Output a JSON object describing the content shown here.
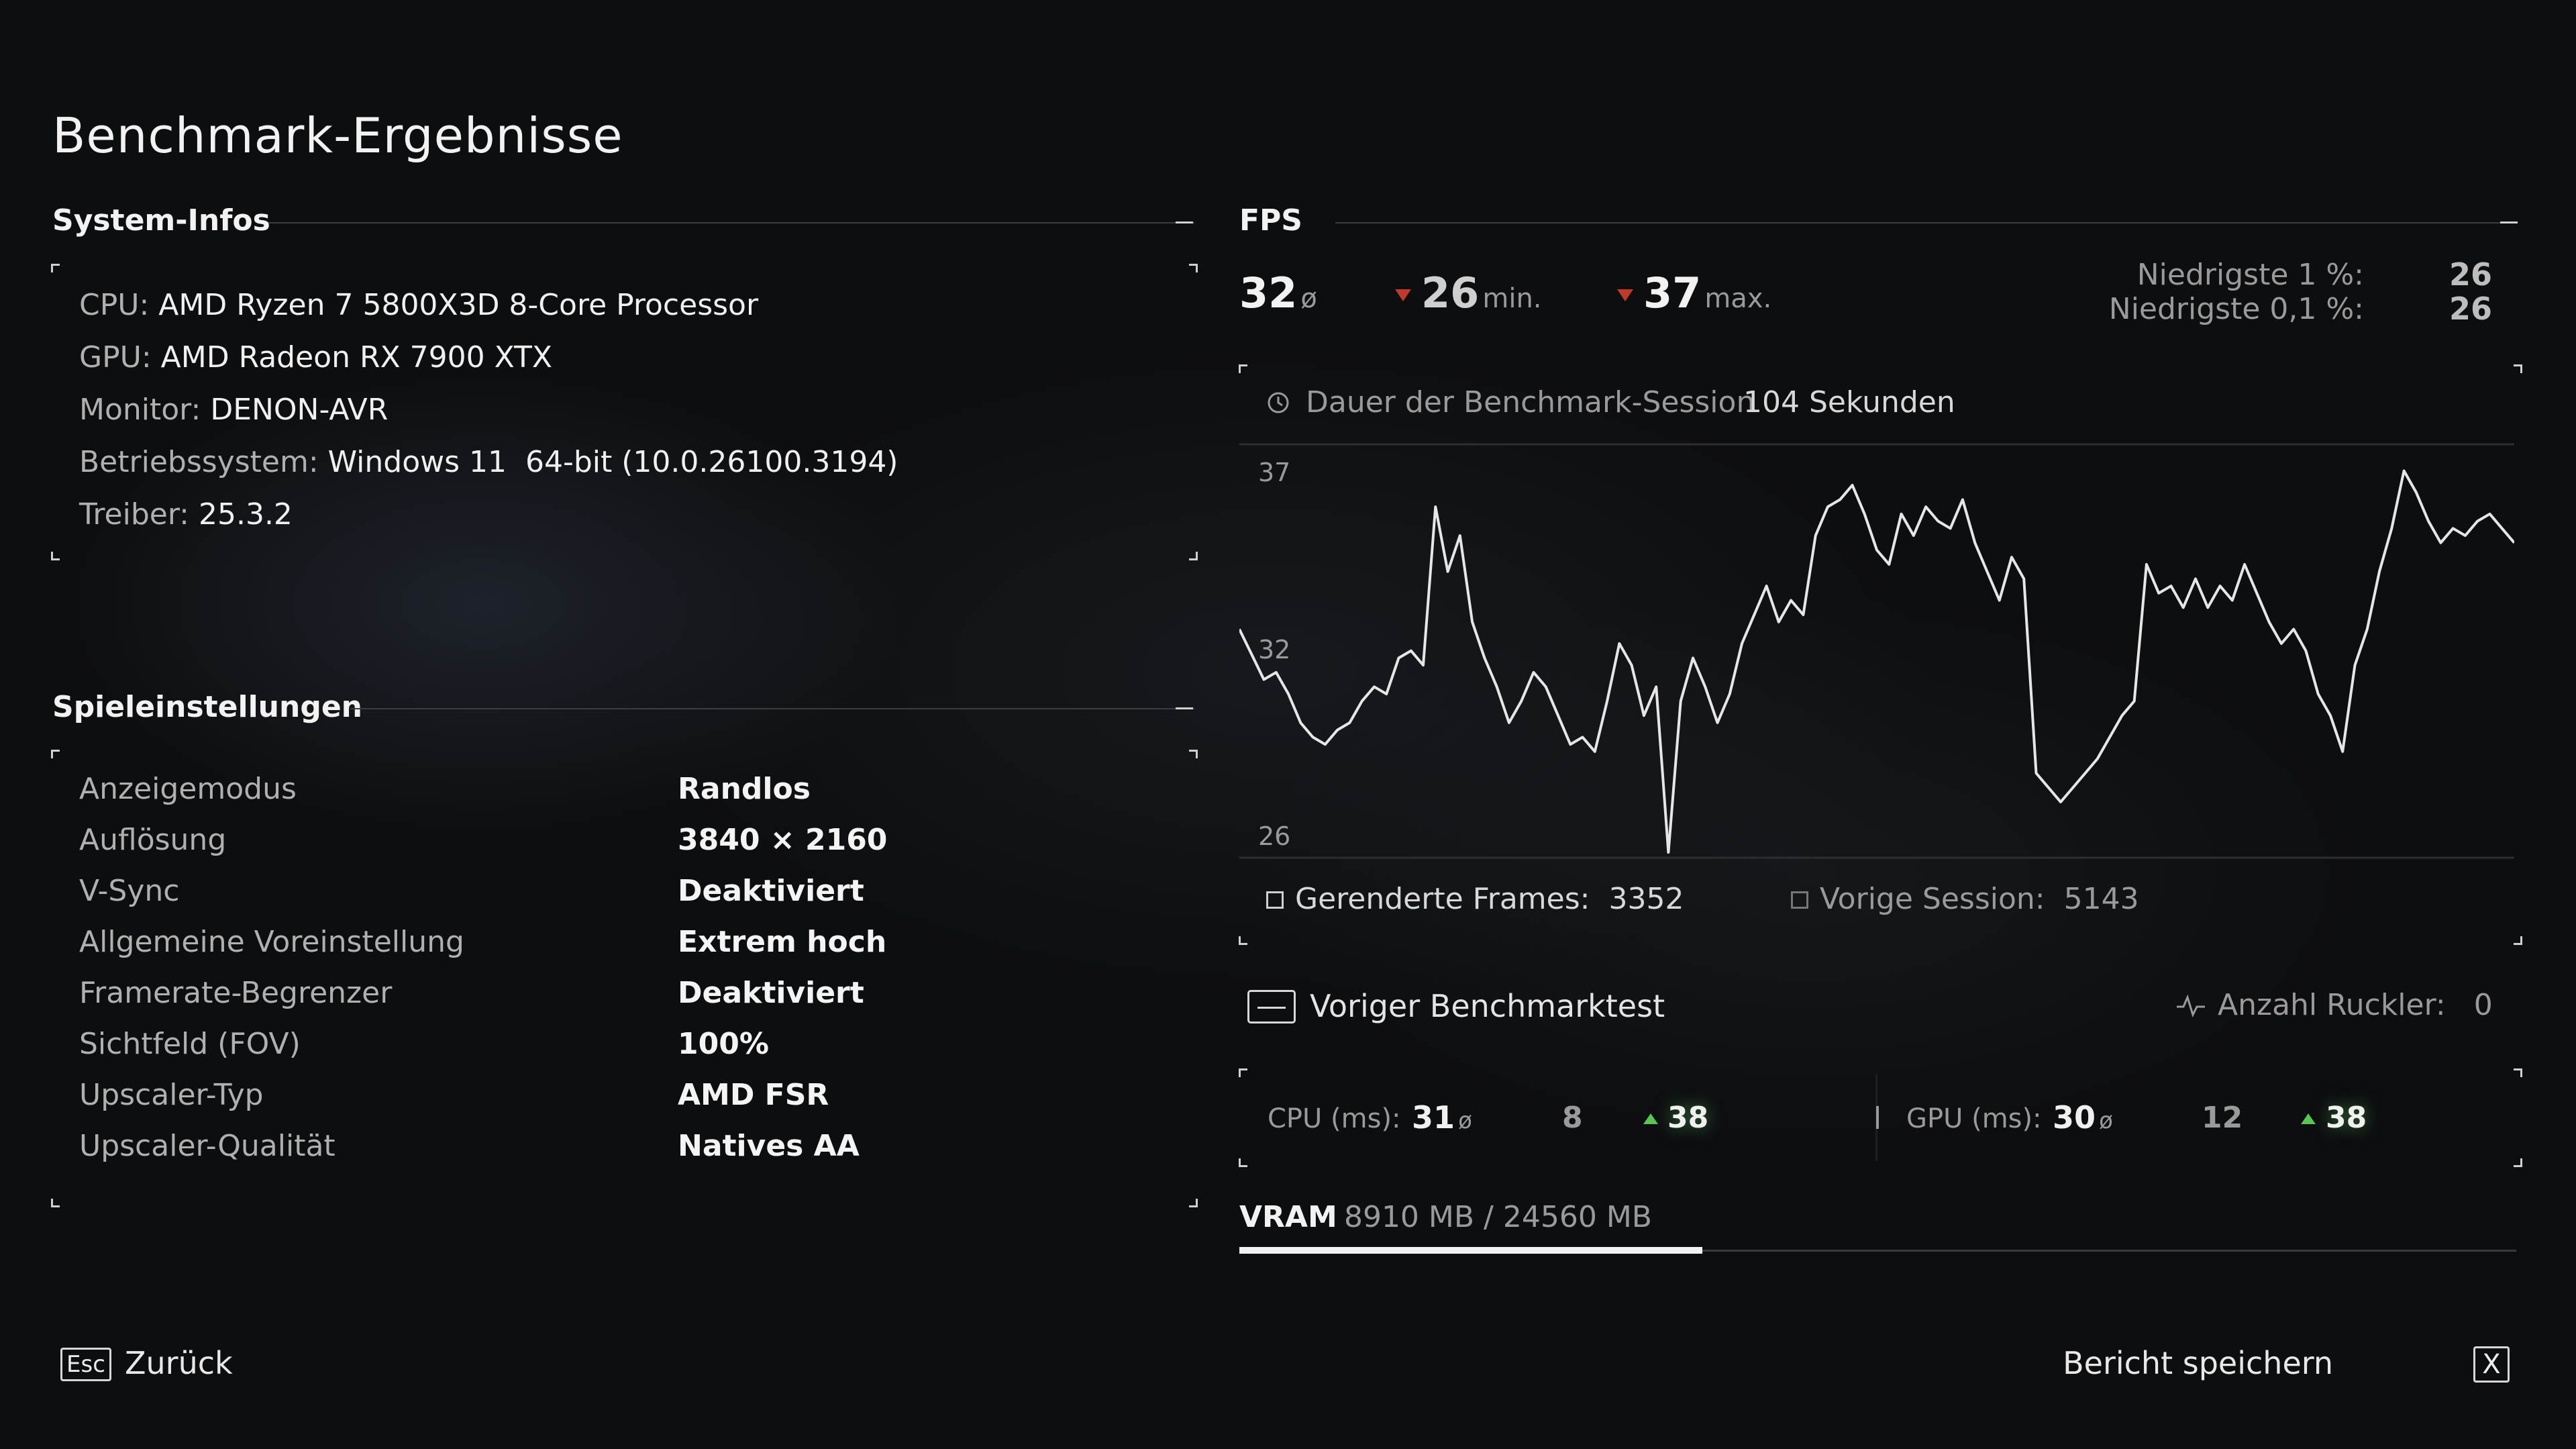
{
  "page_title": "Benchmark-Ergebnisse",
  "system": {
    "heading": "System-Infos",
    "rows": [
      {
        "label": "CPU:",
        "value": "AMD Ryzen 7 5800X3D 8-Core Processor"
      },
      {
        "label": "GPU:",
        "value": "AMD Radeon RX 7900 XTX"
      },
      {
        "label": "Monitor:",
        "value": "DENON-AVR"
      },
      {
        "label": "Betriebssystem:",
        "value": "Windows 11  64-bit (10.0.26100.3194)"
      },
      {
        "label": "Treiber:",
        "value": "25.3.2"
      }
    ]
  },
  "settings": {
    "heading": "Spieleinstellungen",
    "rows": [
      {
        "label": "Anzeigemodus",
        "value": "Randlos"
      },
      {
        "label": "Auflösung",
        "value": "3840 × 2160"
      },
      {
        "label": "V-Sync",
        "value": "Deaktiviert"
      },
      {
        "label": "Allgemeine Voreinstellung",
        "value": "Extrem hoch"
      },
      {
        "label": "Framerate-Begrenzer",
        "value": "Deaktiviert"
      },
      {
        "label": "Sichtfeld (FOV)",
        "value": "100%"
      },
      {
        "label": "Upscaler-Typ",
        "value": "AMD FSR"
      },
      {
        "label": "Upscaler-Qualität",
        "value": "Natives AA"
      }
    ]
  },
  "fps": {
    "heading": "FPS",
    "avg": "32",
    "avg_symbol": "ø",
    "min": "26",
    "min_label": "min.",
    "max": "37",
    "max_label": "max.",
    "low1_label": "Niedrigste 1 %:",
    "low1_value": "26",
    "low01_label": "Niedrigste 0,1 %:",
    "low01_value": "26",
    "duration_label": "Dauer der Benchmark-Session",
    "duration_value": "104 Sekunden",
    "rendered_label": "Gerenderte Frames:",
    "rendered_value": "3352",
    "prev_label": "Vorige Session:",
    "prev_value": "5143"
  },
  "chart_data": {
    "type": "line",
    "title": "",
    "xlabel": "",
    "ylabel": "",
    "y_ticks": [
      "37",
      "32",
      "26"
    ],
    "ylim": [
      26,
      37
    ],
    "x_range": [
      0,
      104
    ],
    "grid": true,
    "series": [
      {
        "values": [
          32.2,
          31.5,
          30.8,
          31.0,
          30.4,
          29.6,
          29.2,
          29.0,
          29.4,
          29.6,
          30.2,
          30.6,
          30.4,
          31.4,
          31.6,
          31.2,
          35.6,
          33.8,
          34.8,
          32.4,
          31.4,
          30.6,
          29.6,
          30.2,
          31.0,
          30.6,
          29.8,
          29.0,
          29.2,
          28.8,
          30.2,
          31.8,
          31.2,
          29.8,
          30.6,
          26.0,
          30.2,
          31.4,
          30.6,
          29.6,
          30.4,
          31.8,
          32.6,
          33.4,
          32.4,
          33.0,
          32.6,
          34.8,
          35.6,
          35.8,
          36.2,
          35.4,
          34.4,
          34.0,
          35.4,
          34.8,
          35.6,
          35.2,
          35.0,
          35.8,
          34.6,
          33.8,
          33.0,
          34.2,
          33.6,
          28.2,
          27.8,
          27.4,
          27.8,
          28.2,
          28.6,
          29.2,
          29.8,
          30.2,
          34.0,
          33.2,
          33.4,
          32.8,
          33.6,
          32.8,
          33.4,
          33.0,
          34.0,
          33.2,
          32.4,
          31.8,
          32.2,
          31.6,
          30.4,
          29.8,
          28.8,
          31.2,
          32.2,
          33.8,
          35.0,
          36.6,
          36.0,
          35.2,
          34.6,
          35.0,
          34.8,
          35.2,
          35.4,
          35.0,
          34.6
        ]
      }
    ]
  },
  "prev_benchmark": {
    "label": "Voriger Benchmarktest",
    "stutter_label": "Anzahl Ruckler:",
    "stutter_value": "0"
  },
  "timing": {
    "cpu_label": "CPU (ms):",
    "cpu_avg": "31",
    "cpu_min": "8",
    "cpu_max": "38",
    "gpu_label": "GPU (ms):",
    "gpu_avg": "30",
    "gpu_min": "12",
    "gpu_max": "38",
    "avg_symbol": "ø"
  },
  "vram": {
    "label": "VRAM",
    "value": "8910 MB / 24560 MB",
    "used_mb": 8910,
    "total_mb": 24560
  },
  "footer": {
    "back_key": "Esc",
    "back_label": "Zurück",
    "save_label": "Bericht speichern",
    "save_key": "X"
  }
}
